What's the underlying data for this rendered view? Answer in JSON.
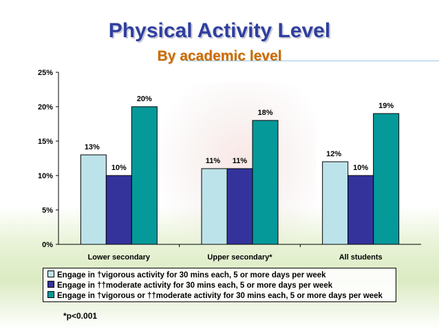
{
  "title": "Physical Activity Level",
  "subtitle": "By academic level",
  "footnote": "*p<0.001",
  "chart_data": {
    "type": "bar",
    "categories": [
      "Lower secondary",
      "Upper secondary*",
      "All students"
    ],
    "series": [
      {
        "name": "Engage in †vigorous activity for 30 mins each, 5 or more days per week",
        "color": "#bde3ea",
        "values": [
          13,
          11,
          12
        ]
      },
      {
        "name": "Engage in ††moderate activity for 30 mins each, 5 or more days per week",
        "color": "#34339b",
        "values": [
          10,
          11,
          10
        ]
      },
      {
        "name": "Engage in †vigorous or ††moderate activity for 30 mins each, 5 or more days per week",
        "color": "#05999a",
        "values": [
          20,
          18,
          19
        ]
      }
    ],
    "data_labels": [
      [
        "13%",
        "10%",
        "20%"
      ],
      [
        "11%",
        "11%",
        "18%"
      ],
      [
        "12%",
        "10%",
        "19%"
      ]
    ],
    "yticks": [
      "0%",
      "5%",
      "10%",
      "15%",
      "20%",
      "25%"
    ],
    "ylim": [
      0,
      25
    ],
    "legend_position": "bottom",
    "grid": false
  }
}
